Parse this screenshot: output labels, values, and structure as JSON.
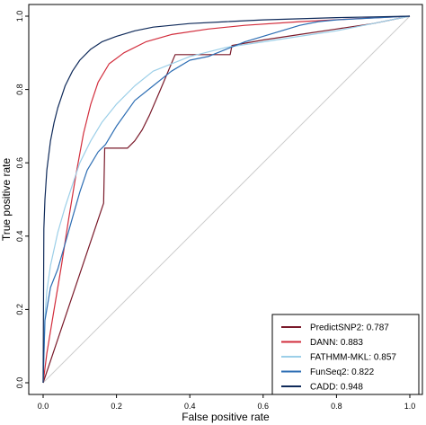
{
  "chart_data": {
    "type": "line",
    "title": "",
    "xlabel": "False positive rate",
    "ylabel": "True positive rate",
    "xlim": [
      0,
      1
    ],
    "ylim": [
      0,
      1
    ],
    "x_ticks": [
      "0.0",
      "0.2",
      "0.4",
      "0.6",
      "0.8",
      "1.0"
    ],
    "y_ticks": [
      "0.0",
      "0.2",
      "0.4",
      "0.6",
      "0.8",
      "1.0"
    ],
    "grid": false,
    "legend_position": "bottom-right",
    "reference_line": {
      "x": [
        0,
        1
      ],
      "y": [
        0,
        1
      ],
      "color": "#cccccc"
    },
    "series": [
      {
        "name": "PredictSNP2",
        "auc": "0.787",
        "color": "#7a1a2a",
        "x": [
          0,
          0.165,
          0.168,
          0.2,
          0.23,
          0.25,
          0.27,
          0.29,
          0.32,
          0.36,
          0.44,
          0.51,
          0.515,
          0.6,
          0.7,
          0.8,
          0.9,
          1.0
        ],
        "y": [
          0,
          0.49,
          0.64,
          0.64,
          0.64,
          0.66,
          0.69,
          0.73,
          0.8,
          0.895,
          0.895,
          0.895,
          0.92,
          0.935,
          0.95,
          0.965,
          0.98,
          1.0
        ]
      },
      {
        "name": "DANN",
        "auc": "0.883",
        "color": "#d22d3c",
        "x": [
          0,
          0.01,
          0.03,
          0.05,
          0.07,
          0.09,
          0.11,
          0.13,
          0.15,
          0.18,
          0.22,
          0.28,
          0.35,
          0.45,
          0.55,
          0.7,
          0.85,
          1.0
        ],
        "y": [
          0,
          0.08,
          0.2,
          0.32,
          0.45,
          0.57,
          0.68,
          0.76,
          0.82,
          0.87,
          0.9,
          0.93,
          0.95,
          0.965,
          0.975,
          0.985,
          0.993,
          1.0
        ]
      },
      {
        "name": "FATHMM-MKL",
        "auc": "0.857",
        "color": "#9ccfe8",
        "x": [
          0,
          0.005,
          0.01,
          0.02,
          0.04,
          0.06,
          0.08,
          0.1,
          0.13,
          0.16,
          0.2,
          0.25,
          0.3,
          0.4,
          0.5,
          0.6,
          0.7,
          0.8,
          0.9,
          1.0
        ],
        "y": [
          0,
          0.18,
          0.25,
          0.32,
          0.41,
          0.48,
          0.54,
          0.6,
          0.66,
          0.71,
          0.76,
          0.81,
          0.85,
          0.89,
          0.915,
          0.93,
          0.945,
          0.96,
          0.98,
          1.0
        ]
      },
      {
        "name": "FunSeq2",
        "auc": "0.822",
        "color": "#2c6db3",
        "x": [
          0,
          0.005,
          0.02,
          0.04,
          0.06,
          0.08,
          0.1,
          0.12,
          0.15,
          0.17,
          0.2,
          0.25,
          0.3,
          0.35,
          0.4,
          0.45,
          0.5,
          0.55,
          0.6,
          0.65,
          0.7,
          0.75,
          0.8,
          0.9,
          1.0
        ],
        "y": [
          0,
          0.17,
          0.26,
          0.31,
          0.38,
          0.45,
          0.52,
          0.58,
          0.63,
          0.65,
          0.7,
          0.77,
          0.81,
          0.85,
          0.88,
          0.89,
          0.91,
          0.93,
          0.945,
          0.96,
          0.975,
          0.985,
          0.99,
          0.995,
          1.0
        ]
      },
      {
        "name": "CADD",
        "auc": "0.948",
        "color": "#0f2a5a",
        "x": [
          0,
          0.002,
          0.005,
          0.01,
          0.02,
          0.03,
          0.04,
          0.05,
          0.06,
          0.08,
          0.1,
          0.13,
          0.16,
          0.2,
          0.25,
          0.3,
          0.4,
          0.5,
          0.6,
          0.7,
          0.8,
          0.9,
          1.0
        ],
        "y": [
          0,
          0.42,
          0.5,
          0.58,
          0.66,
          0.71,
          0.75,
          0.78,
          0.81,
          0.85,
          0.88,
          0.91,
          0.93,
          0.945,
          0.96,
          0.97,
          0.98,
          0.985,
          0.99,
          0.993,
          0.996,
          0.998,
          1.0
        ]
      }
    ]
  }
}
